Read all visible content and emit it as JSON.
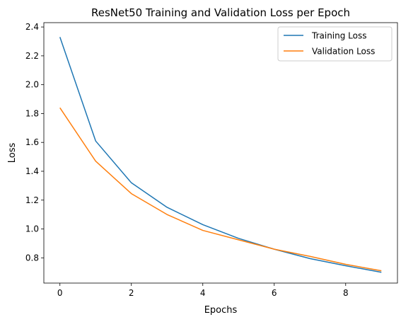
{
  "chart_data": {
    "type": "line",
    "title": "ResNet50 Training and Validation Loss per Epoch",
    "xlabel": "Epochs",
    "ylabel": "Loss",
    "x": [
      0,
      1,
      2,
      3,
      4,
      5,
      6,
      7,
      8,
      9
    ],
    "xlim": [
      -0.45,
      9.45
    ],
    "ylim": [
      0.625,
      2.43
    ],
    "xticks": [
      0,
      2,
      4,
      6,
      8
    ],
    "yticks": [
      0.8,
      1.0,
      1.2,
      1.4,
      1.6,
      1.8,
      2.0,
      2.2,
      2.4
    ],
    "ytick_labels": [
      "0.8",
      "1.0",
      "1.2",
      "1.4",
      "1.6",
      "1.8",
      "2.0",
      "2.2",
      "2.4"
    ],
    "grid": false,
    "legend": "upper right",
    "series": [
      {
        "name": "Training Loss",
        "color": "#1f77b4",
        "values": [
          2.33,
          1.61,
          1.32,
          1.15,
          1.03,
          0.935,
          0.86,
          0.795,
          0.745,
          0.7
        ]
      },
      {
        "name": "Validation Loss",
        "color": "#ff7f0e",
        "values": [
          1.84,
          1.47,
          1.245,
          1.1,
          0.99,
          0.925,
          0.86,
          0.81,
          0.755,
          0.71
        ]
      }
    ]
  }
}
